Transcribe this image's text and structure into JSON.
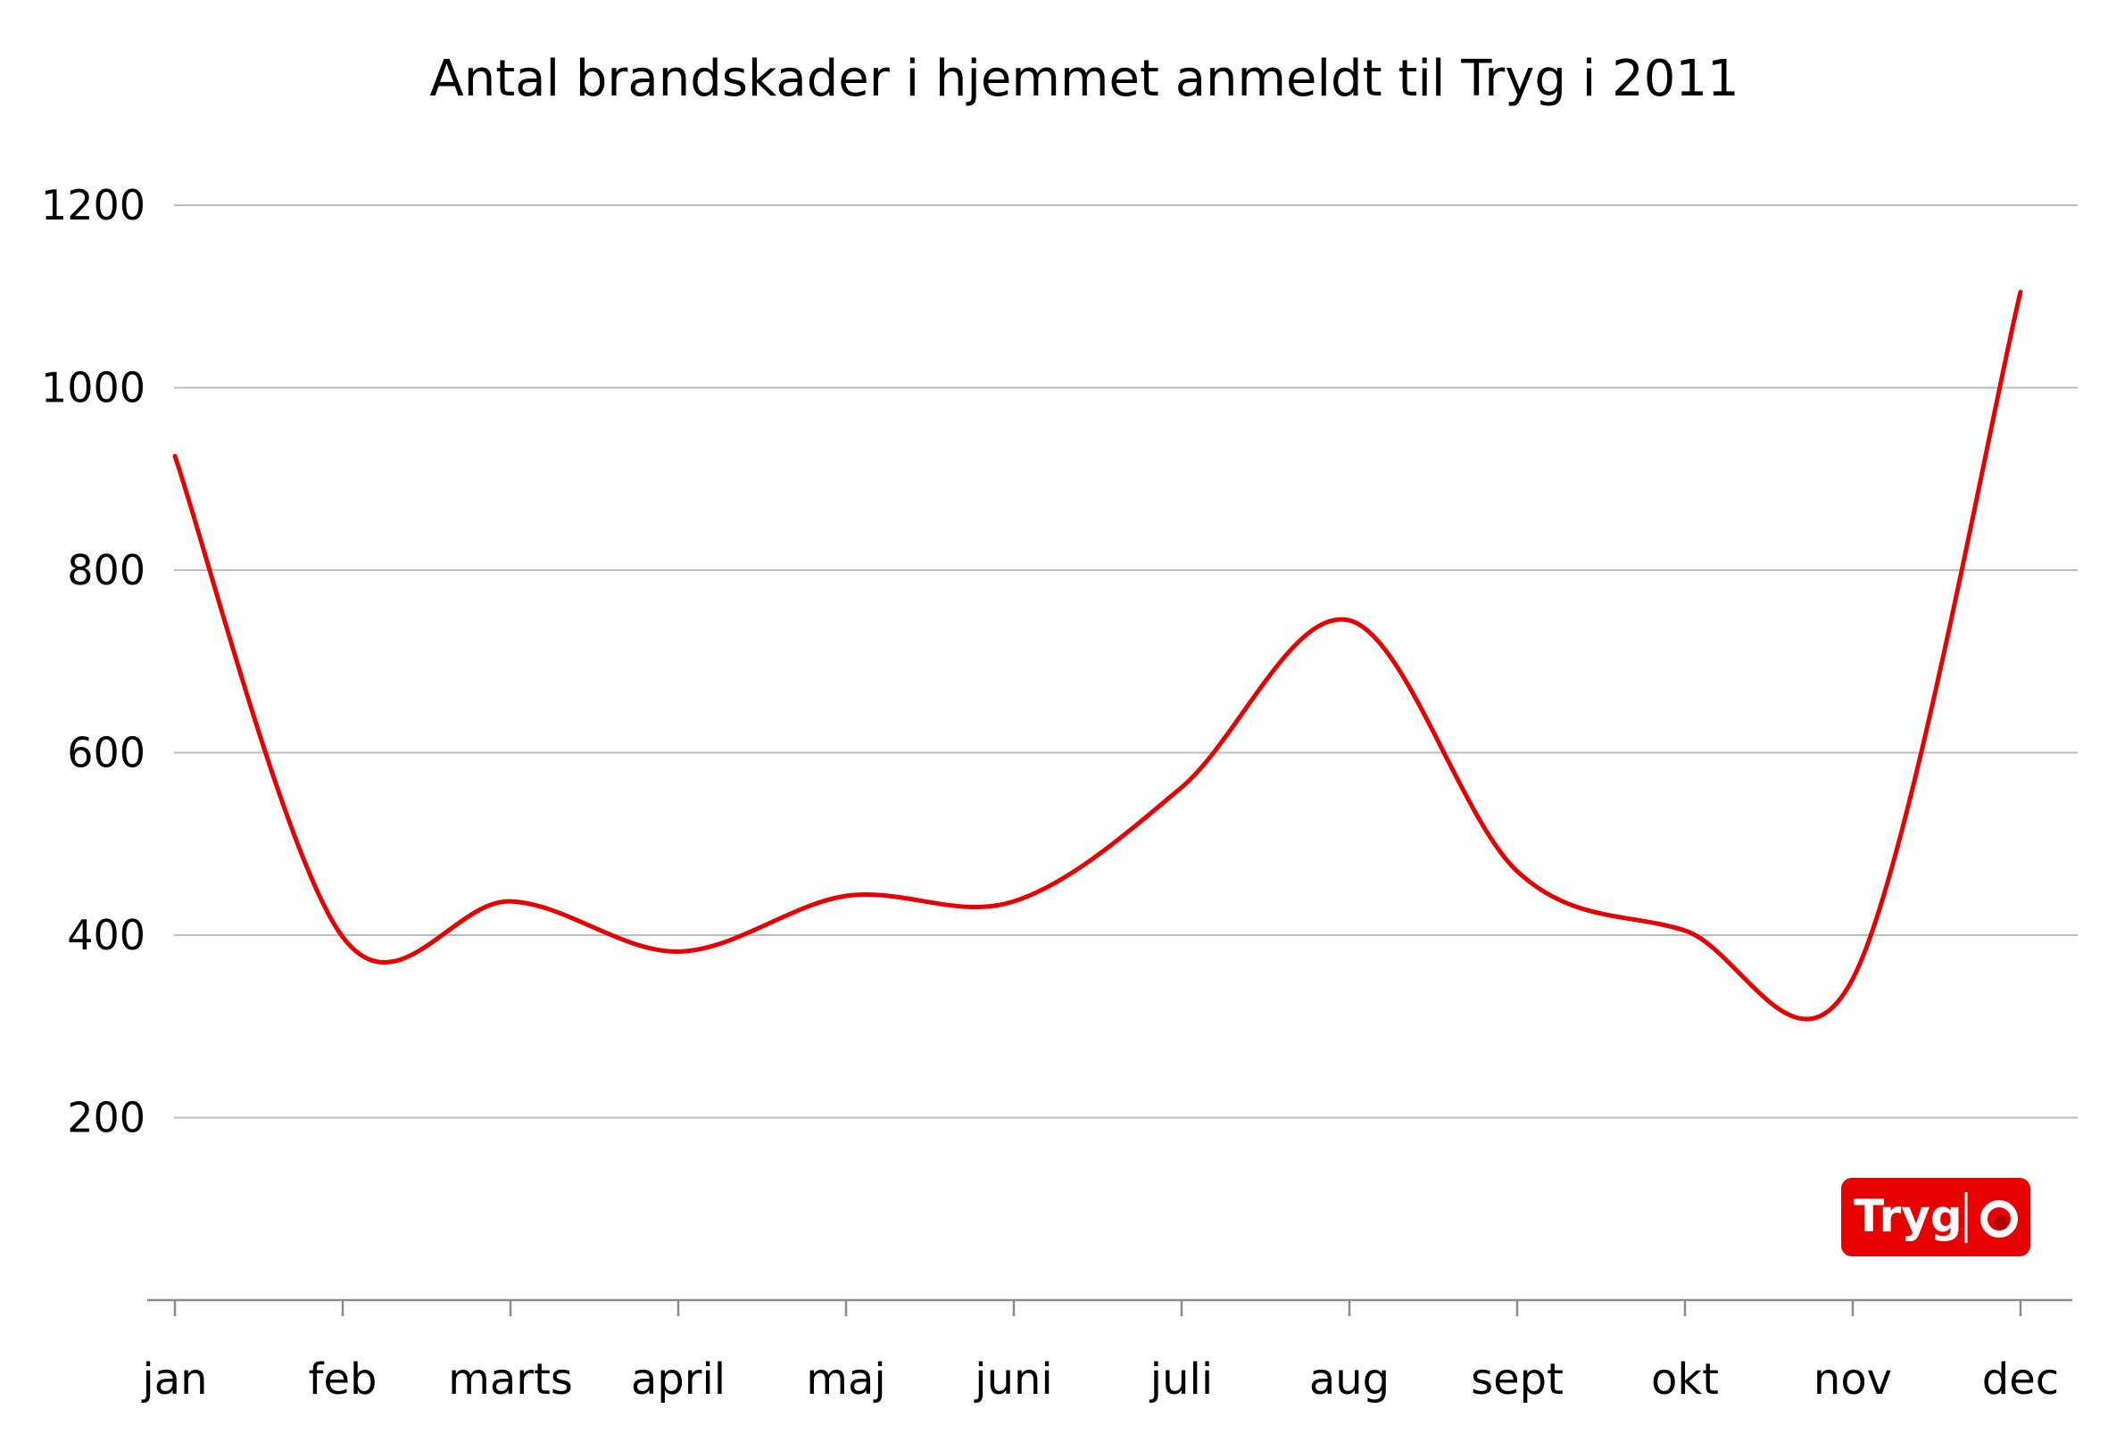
{
  "chart_data": {
    "type": "line",
    "title": "Antal brandskader i hjemmet anmeldt til Tryg i 2011",
    "xlabel": "",
    "ylabel": "",
    "categories": [
      "jan",
      "feb",
      "marts",
      "april",
      "maj",
      "juni",
      "juli",
      "aug",
      "sept",
      "okt",
      "nov",
      "dec"
    ],
    "series": [
      {
        "values": [
          925,
          398,
          437,
          382,
          443,
          437,
          562,
          745,
          470,
          405,
          352,
          1105
        ]
      }
    ],
    "y_ticks": [
      200,
      400,
      600,
      800,
      1000,
      1200
    ],
    "ylim": [
      0,
      1200
    ],
    "grid": true,
    "legend": "none",
    "colors": {
      "series": "#e60000",
      "grid": "#bdbdbd",
      "logo_bg": "#e60000"
    }
  },
  "logo": {
    "text": "Tryg",
    "icon": "tryg-ring-icon"
  }
}
